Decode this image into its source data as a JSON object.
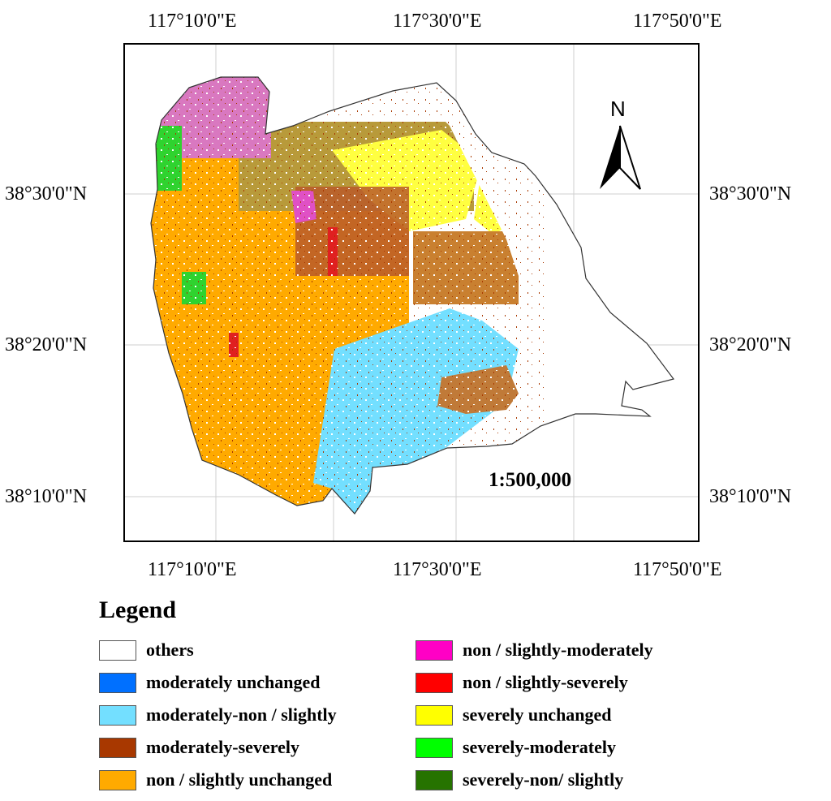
{
  "map": {
    "scale": "1:500,000",
    "north_label": "N",
    "longitude_labels": [
      "117°10'0\"E",
      "117°30'0\"E",
      "117°50'0\"E"
    ],
    "latitude_labels": [
      "38°30'0\"N",
      "38°20'0\"N",
      "38°10'0\"N"
    ]
  },
  "legend": {
    "title": "Legend",
    "items": [
      {
        "label": "others",
        "color": "#FFFFFF"
      },
      {
        "label": "moderately unchanged",
        "color": "#0070FF"
      },
      {
        "label": "moderately-non / slightly",
        "color": "#73DFFF"
      },
      {
        "label": "moderately-severely",
        "color": "#A83800"
      },
      {
        "label": "non / slightly unchanged",
        "color": "#FFAA00"
      },
      {
        "label": "non / slightly-moderately",
        "color": "#FF00C5"
      },
      {
        "label": "non / slightly-severely",
        "color": "#FF0000"
      },
      {
        "label": "severely unchanged",
        "color": "#FFFF00"
      },
      {
        "label": "severely-moderately",
        "color": "#00FF00"
      },
      {
        "label": "severely-non/ slightly",
        "color": "#267300"
      }
    ]
  }
}
